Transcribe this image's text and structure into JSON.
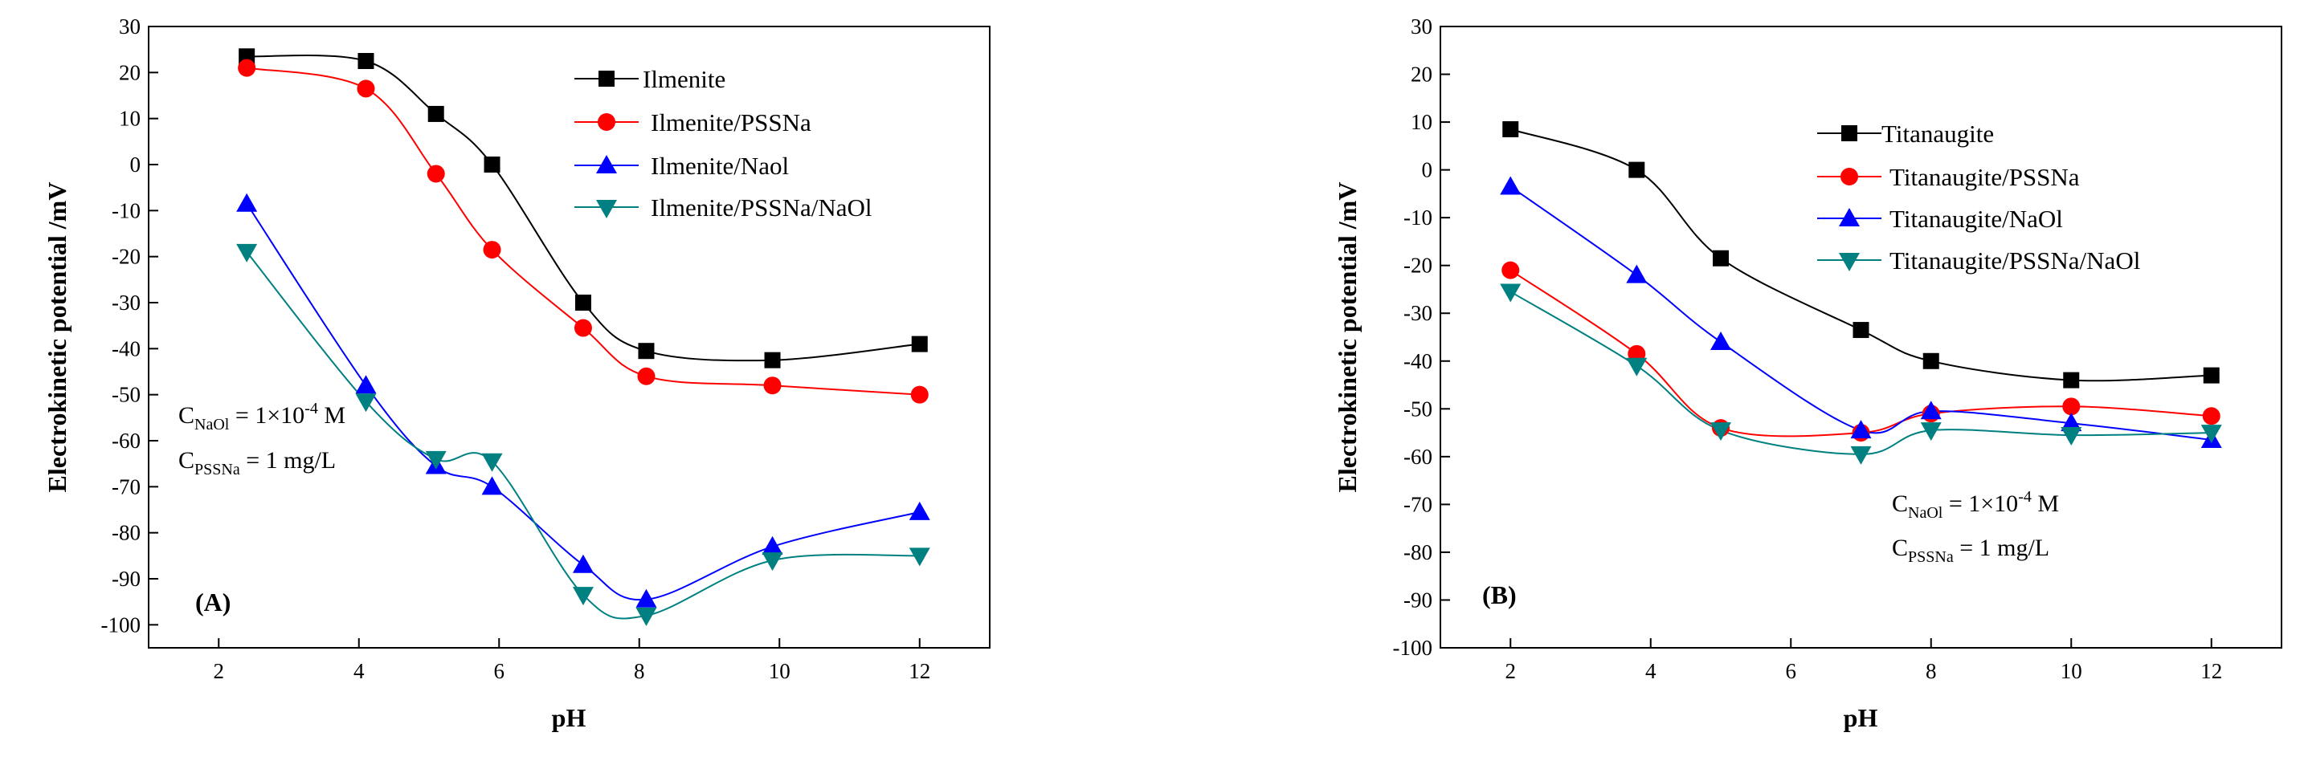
{
  "chart_data": [
    {
      "type": "line",
      "panel_label": "(A)",
      "xlabel": "pH",
      "ylabel": "Electrokinetic potential /mV",
      "xlim": [
        1,
        13
      ],
      "ylim": [
        -105,
        30
      ],
      "xticks": [
        2,
        4,
        6,
        8,
        10,
        12
      ],
      "yticks": [
        30,
        20,
        10,
        0,
        -10,
        -20,
        -30,
        -40,
        -50,
        -60,
        -70,
        -80,
        -90,
        -100
      ],
      "legend_position": "top-right",
      "series": [
        {
          "name": "Ilmenite",
          "marker": "square",
          "color": "#000000",
          "x": [
            2.4,
            4.1,
            5.1,
            5.9,
            7.2,
            8.1,
            9.9,
            12.0
          ],
          "y": [
            23.5,
            22.5,
            11,
            0,
            -30,
            -40.5,
            -42.5,
            -39
          ]
        },
        {
          "name": "Ilmenite/PSSNa",
          "marker": "circle",
          "color": "#ff0000",
          "x": [
            2.4,
            4.1,
            5.1,
            5.9,
            7.2,
            8.1,
            9.9,
            12.0
          ],
          "y": [
            21,
            16.5,
            -2,
            -18.5,
            -35.5,
            -46,
            -48,
            -50
          ]
        },
        {
          "name": "Ilmenite/Naol",
          "marker": "triangle-up",
          "color": "#0000ff",
          "x": [
            2.4,
            4.1,
            5.1,
            5.9,
            7.2,
            8.1,
            9.9,
            12.0
          ],
          "y": [
            -8.5,
            -48,
            -65.5,
            -70,
            -87,
            -94.5,
            -83,
            -75.5
          ]
        },
        {
          "name": "Ilmenite/PSSNa/NaOl",
          "marker": "triangle-down",
          "color": "#008080",
          "x": [
            2.4,
            4.1,
            5.1,
            5.9,
            7.2,
            8.1,
            9.9,
            12.0
          ],
          "y": [
            -19,
            -51.5,
            -64,
            -64.5,
            -93.5,
            -98,
            -86,
            -85
          ]
        }
      ],
      "annotations": {
        "c_naol": {
          "base": "C",
          "sub": "NaOl",
          "mid": " = 1×10",
          "sup": "-4",
          "tail": " M"
        },
        "c_pssna": {
          "base": "C",
          "sub": "PSSNa",
          "tail": " = 1 mg/L"
        }
      }
    },
    {
      "type": "line",
      "panel_label": "(B)",
      "xlabel": "pH",
      "ylabel": "Electrokinetic potential /mV",
      "xlim": [
        1,
        13
      ],
      "ylim": [
        -100,
        30
      ],
      "xticks": [
        2,
        4,
        6,
        8,
        10,
        12
      ],
      "yticks": [
        30,
        20,
        10,
        0,
        -10,
        -20,
        -30,
        -40,
        -50,
        -60,
        -70,
        -80,
        -90,
        -100
      ],
      "legend_position": "top-right",
      "series": [
        {
          "name": "Titanaugite",
          "marker": "square",
          "color": "#000000",
          "x": [
            2.0,
            3.8,
            5.0,
            7.0,
            8.0,
            10.0,
            12.0
          ],
          "y": [
            8.5,
            0,
            -18.5,
            -33.5,
            -40,
            -44,
            -43
          ]
        },
        {
          "name": "Titanaugite/PSSNa",
          "marker": "circle",
          "color": "#ff0000",
          "x": [
            2.0,
            3.8,
            5.0,
            7.0,
            8.0,
            10.0,
            12.0
          ],
          "y": [
            -21,
            -38.5,
            -54,
            -55,
            -51,
            -49.5,
            -51.5
          ]
        },
        {
          "name": "Titanaugite/NaOl",
          "marker": "triangle-up",
          "color": "#0000ff",
          "x": [
            2.0,
            3.8,
            5.0,
            7.0,
            8.0,
            10.0,
            12.0
          ],
          "y": [
            -3.5,
            -22,
            -36,
            -54.5,
            -50.5,
            -53,
            -56.5
          ]
        },
        {
          "name": "Titanaugite/PSSNa/NaOl",
          "marker": "triangle-down",
          "color": "#008080",
          "x": [
            2.0,
            3.8,
            5.0,
            7.0,
            8.0,
            10.0,
            12.0
          ],
          "y": [
            -25.5,
            -41,
            -54.5,
            -59.5,
            -54.5,
            -55.5,
            -55
          ]
        }
      ],
      "annotations": {
        "c_naol": {
          "base": "C",
          "sub": "NaOl",
          "mid": " = 1×10",
          "sup": "-4",
          "tail": " M"
        },
        "c_pssna": {
          "base": "C",
          "sub": "PSSNa",
          "tail": " = 1 mg/L"
        }
      }
    }
  ]
}
